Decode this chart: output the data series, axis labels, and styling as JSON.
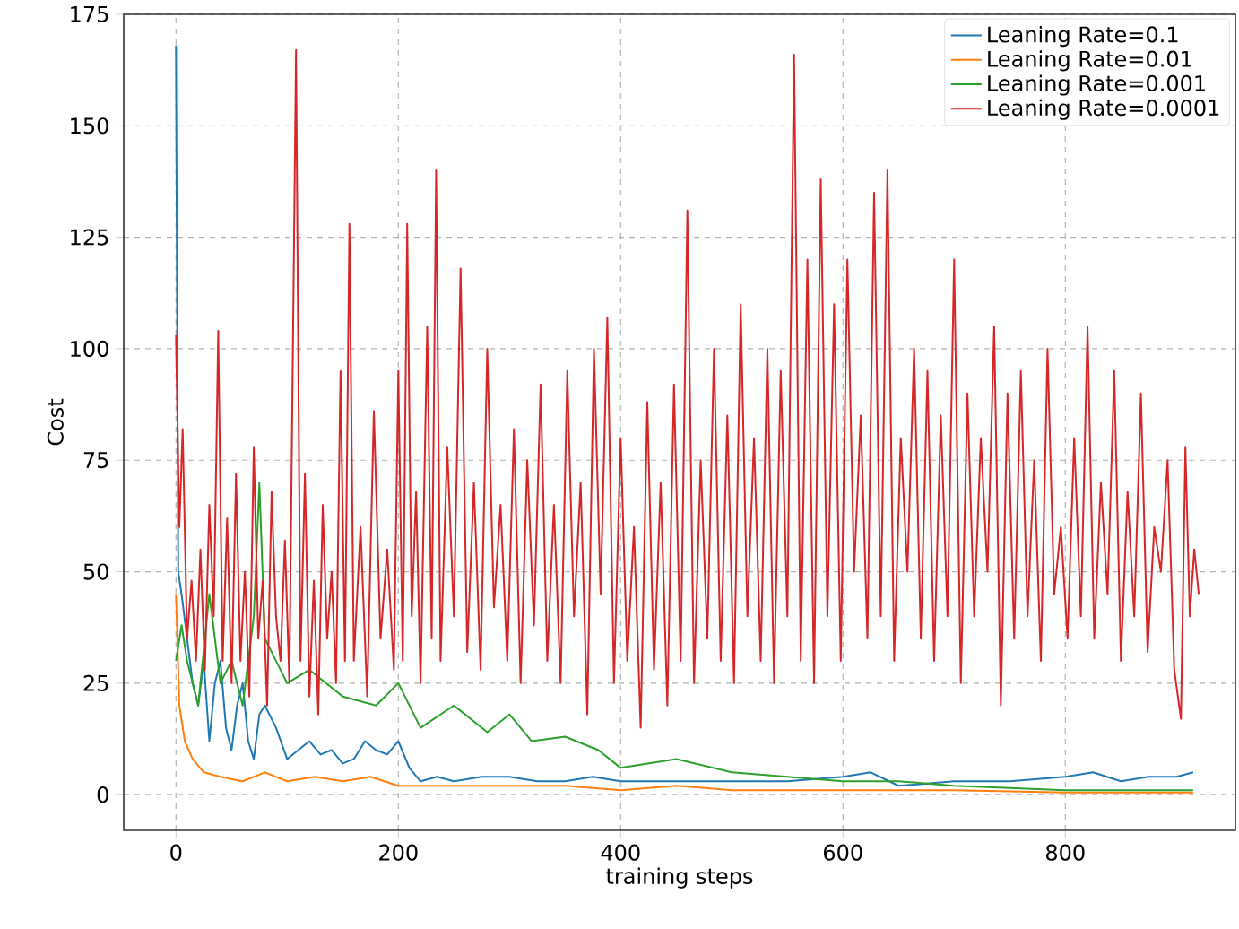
{
  "chart_data": {
    "type": "line",
    "xlabel": "training steps",
    "ylabel": "Cost",
    "xlim": [
      -47,
      953
    ],
    "ylim": [
      -8,
      175
    ],
    "xticks": [
      0,
      200,
      400,
      600,
      800
    ],
    "yticks": [
      0,
      25,
      50,
      75,
      100,
      125,
      150,
      175
    ],
    "grid": true,
    "legend": "top right",
    "series": [
      {
        "name": "Leaning Rate=0.1",
        "color": "#1f77b4",
        "x": [
          0,
          2,
          5,
          10,
          15,
          20,
          25,
          30,
          35,
          40,
          45,
          50,
          55,
          60,
          65,
          70,
          75,
          80,
          90,
          100,
          110,
          120,
          130,
          140,
          150,
          160,
          170,
          180,
          190,
          200,
          210,
          220,
          235,
          250,
          275,
          300,
          325,
          350,
          375,
          400,
          425,
          450,
          500,
          550,
          600,
          625,
          650,
          700,
          750,
          800,
          825,
          850,
          875,
          900,
          915
        ],
        "values": [
          168,
          50,
          45,
          35,
          25,
          20,
          30,
          12,
          25,
          30,
          15,
          10,
          20,
          25,
          12,
          8,
          18,
          20,
          15,
          8,
          10,
          12,
          9,
          10,
          7,
          8,
          12,
          10,
          9,
          12,
          6,
          3,
          4,
          3,
          4,
          4,
          3,
          3,
          4,
          3,
          3,
          3,
          3,
          3,
          4,
          5,
          2,
          3,
          3,
          4,
          5,
          3,
          4,
          4,
          5
        ]
      },
      {
        "name": "Leaning Rate=0.01",
        "color": "#ff7f0e",
        "x": [
          0,
          3,
          8,
          15,
          25,
          40,
          60,
          80,
          100,
          125,
          150,
          175,
          200,
          250,
          300,
          350,
          400,
          450,
          500,
          600,
          700,
          800,
          915
        ],
        "values": [
          45,
          20,
          12,
          8,
          5,
          4,
          3,
          5,
          3,
          4,
          3,
          4,
          2,
          2,
          2,
          2,
          1,
          2,
          1,
          1,
          1,
          0.5,
          0.5
        ]
      },
      {
        "name": "Leaning Rate=0.001",
        "color": "#2ca02c",
        "x": [
          0,
          5,
          10,
          20,
          30,
          40,
          50,
          60,
          70,
          75,
          80,
          100,
          120,
          150,
          180,
          200,
          220,
          250,
          280,
          300,
          320,
          350,
          380,
          400,
          450,
          500,
          550,
          600,
          650,
          700,
          800,
          915
        ],
        "values": [
          30,
          38,
          30,
          20,
          45,
          25,
          30,
          20,
          40,
          70,
          35,
          25,
          28,
          22,
          20,
          25,
          15,
          20,
          14,
          18,
          12,
          13,
          10,
          6,
          8,
          5,
          4,
          3,
          3,
          2,
          1,
          1
        ]
      },
      {
        "name": "Leaning Rate=0.0001",
        "color": "#d62728",
        "x": [
          0,
          3,
          6,
          10,
          14,
          18,
          22,
          26,
          30,
          34,
          38,
          42,
          46,
          50,
          54,
          58,
          62,
          66,
          70,
          74,
          78,
          82,
          86,
          90,
          94,
          98,
          102,
          108,
          112,
          116,
          120,
          124,
          128,
          132,
          136,
          140,
          144,
          148,
          152,
          156,
          160,
          166,
          172,
          178,
          184,
          190,
          196,
          200,
          204,
          208,
          212,
          216,
          220,
          226,
          230,
          234,
          238,
          244,
          250,
          256,
          262,
          268,
          274,
          280,
          286,
          292,
          298,
          304,
          310,
          316,
          322,
          328,
          334,
          340,
          346,
          352,
          358,
          364,
          370,
          376,
          382,
          388,
          394,
          400,
          406,
          412,
          418,
          424,
          430,
          436,
          442,
          448,
          454,
          460,
          466,
          472,
          478,
          484,
          490,
          496,
          502,
          508,
          514,
          520,
          526,
          532,
          538,
          544,
          550,
          556,
          562,
          568,
          574,
          580,
          586,
          592,
          598,
          604,
          610,
          616,
          622,
          628,
          634,
          640,
          646,
          652,
          658,
          664,
          670,
          676,
          682,
          688,
          694,
          700,
          706,
          712,
          718,
          724,
          730,
          736,
          742,
          748,
          754,
          760,
          766,
          772,
          778,
          784,
          790,
          796,
          802,
          808,
          814,
          820,
          826,
          832,
          838,
          844,
          850,
          856,
          862,
          868,
          874,
          880,
          886,
          892,
          898,
          904,
          908,
          912,
          916,
          920
        ],
        "values": [
          103,
          60,
          82,
          35,
          48,
          30,
          55,
          28,
          65,
          40,
          104,
          30,
          62,
          25,
          72,
          30,
          50,
          22,
          78,
          35,
          48,
          20,
          68,
          40,
          30,
          57,
          25,
          167,
          30,
          72,
          22,
          48,
          18,
          65,
          35,
          50,
          25,
          95,
          30,
          128,
          30,
          60,
          22,
          86,
          35,
          55,
          28,
          95,
          30,
          128,
          40,
          68,
          25,
          105,
          35,
          140,
          30,
          78,
          40,
          118,
          32,
          70,
          28,
          100,
          42,
          65,
          30,
          82,
          25,
          75,
          38,
          92,
          30,
          65,
          25,
          95,
          40,
          70,
          18,
          100,
          45,
          107,
          25,
          80,
          30,
          60,
          15,
          88,
          28,
          70,
          20,
          92,
          30,
          131,
          25,
          75,
          35,
          100,
          30,
          85,
          25,
          110,
          40,
          80,
          30,
          100,
          25,
          95,
          40,
          166,
          30,
          120,
          25,
          138,
          40,
          110,
          30,
          120,
          50,
          85,
          35,
          135,
          40,
          140,
          30,
          80,
          50,
          100,
          35,
          95,
          30,
          85,
          40,
          120,
          25,
          90,
          40,
          80,
          50,
          105,
          20,
          90,
          35,
          95,
          40,
          75,
          30,
          100,
          45,
          60,
          35,
          80,
          40,
          105,
          35,
          70,
          45,
          95,
          30,
          68,
          40,
          90,
          32,
          60,
          50,
          75,
          28,
          17,
          78,
          40,
          55,
          45
        ]
      }
    ]
  }
}
